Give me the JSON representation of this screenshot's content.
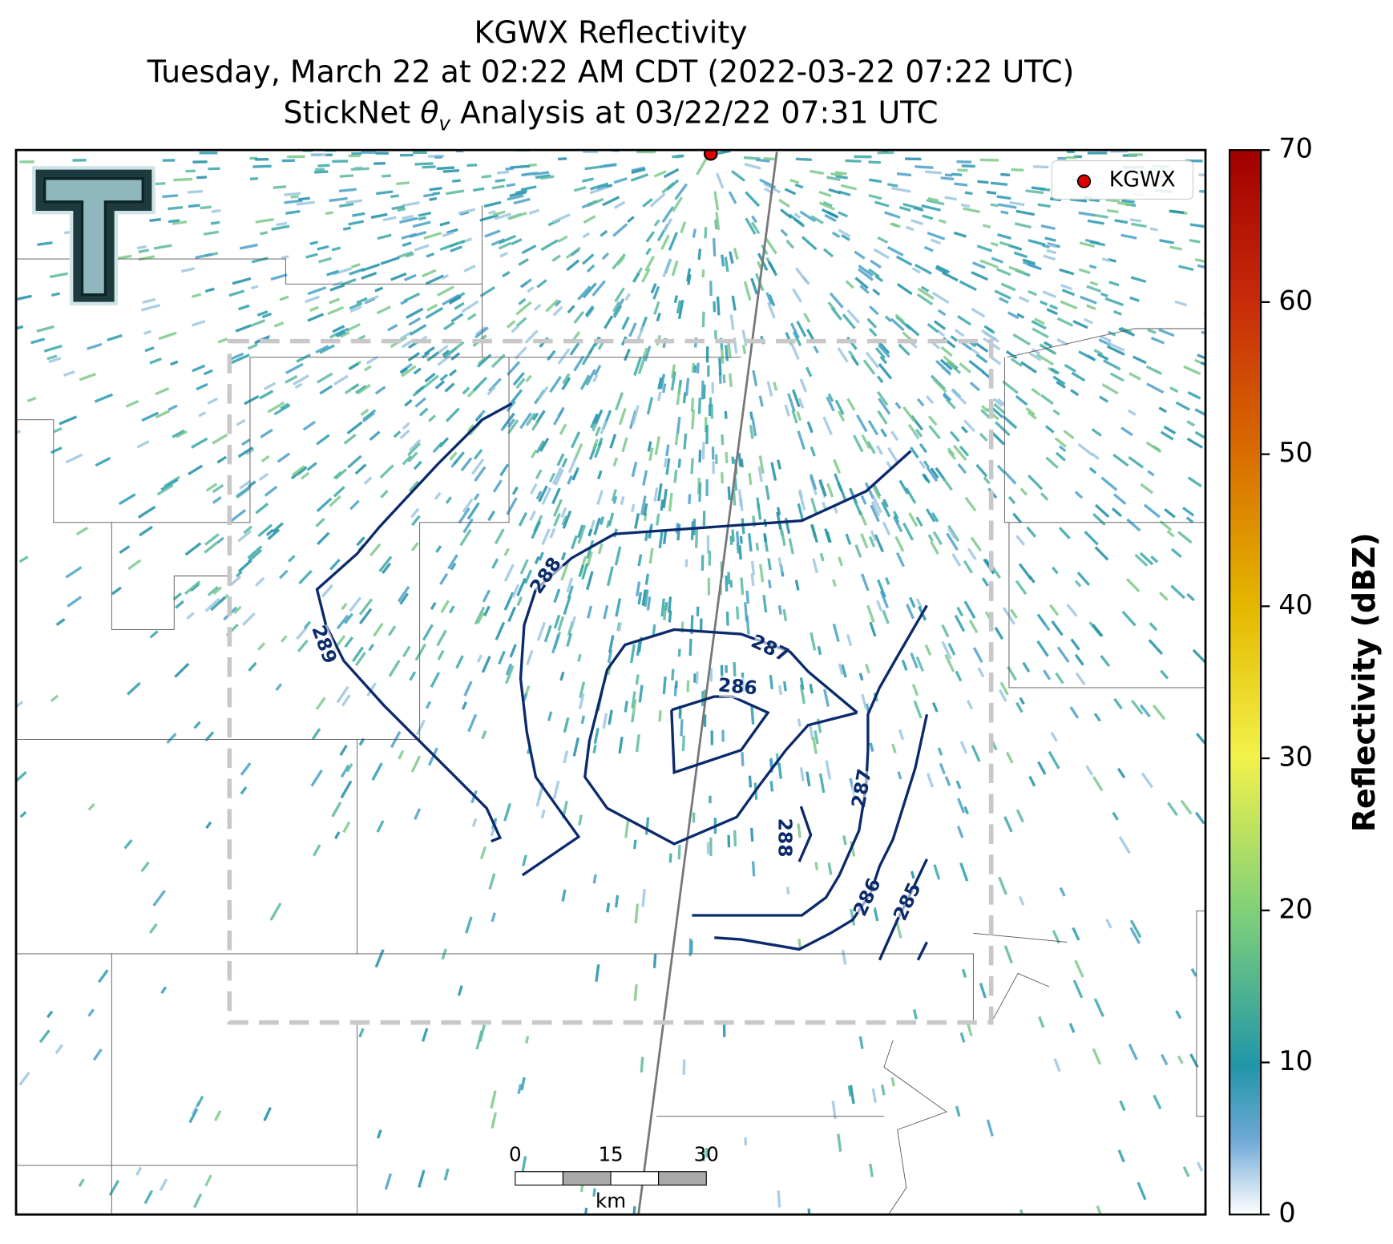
{
  "title_lines": [
    "KGWX Reflectivity",
    "Tuesday, March 22 at 02:22 AM CDT (2022-03-22 07:22 UTC)"
  ],
  "analysis_title": {
    "before": "StickNet ",
    "symbol": "θ",
    "subscript": "v",
    "after": " Analysis at 03/22/22 07:31 UTC"
  },
  "legend": {
    "label": "KGWX",
    "color": "#e00000"
  },
  "colorbar": {
    "label": "Reflectivity (dBZ)",
    "lim": [
      0,
      70
    ],
    "ticks": [
      0,
      10,
      20,
      30,
      40,
      50,
      60,
      70
    ]
  },
  "scalebar": {
    "ticks": [
      0,
      15,
      30
    ],
    "unit": "km"
  },
  "contour_labels": [
    "289",
    "288",
    "287",
    "286",
    "287",
    "288",
    "286",
    "285"
  ]
}
